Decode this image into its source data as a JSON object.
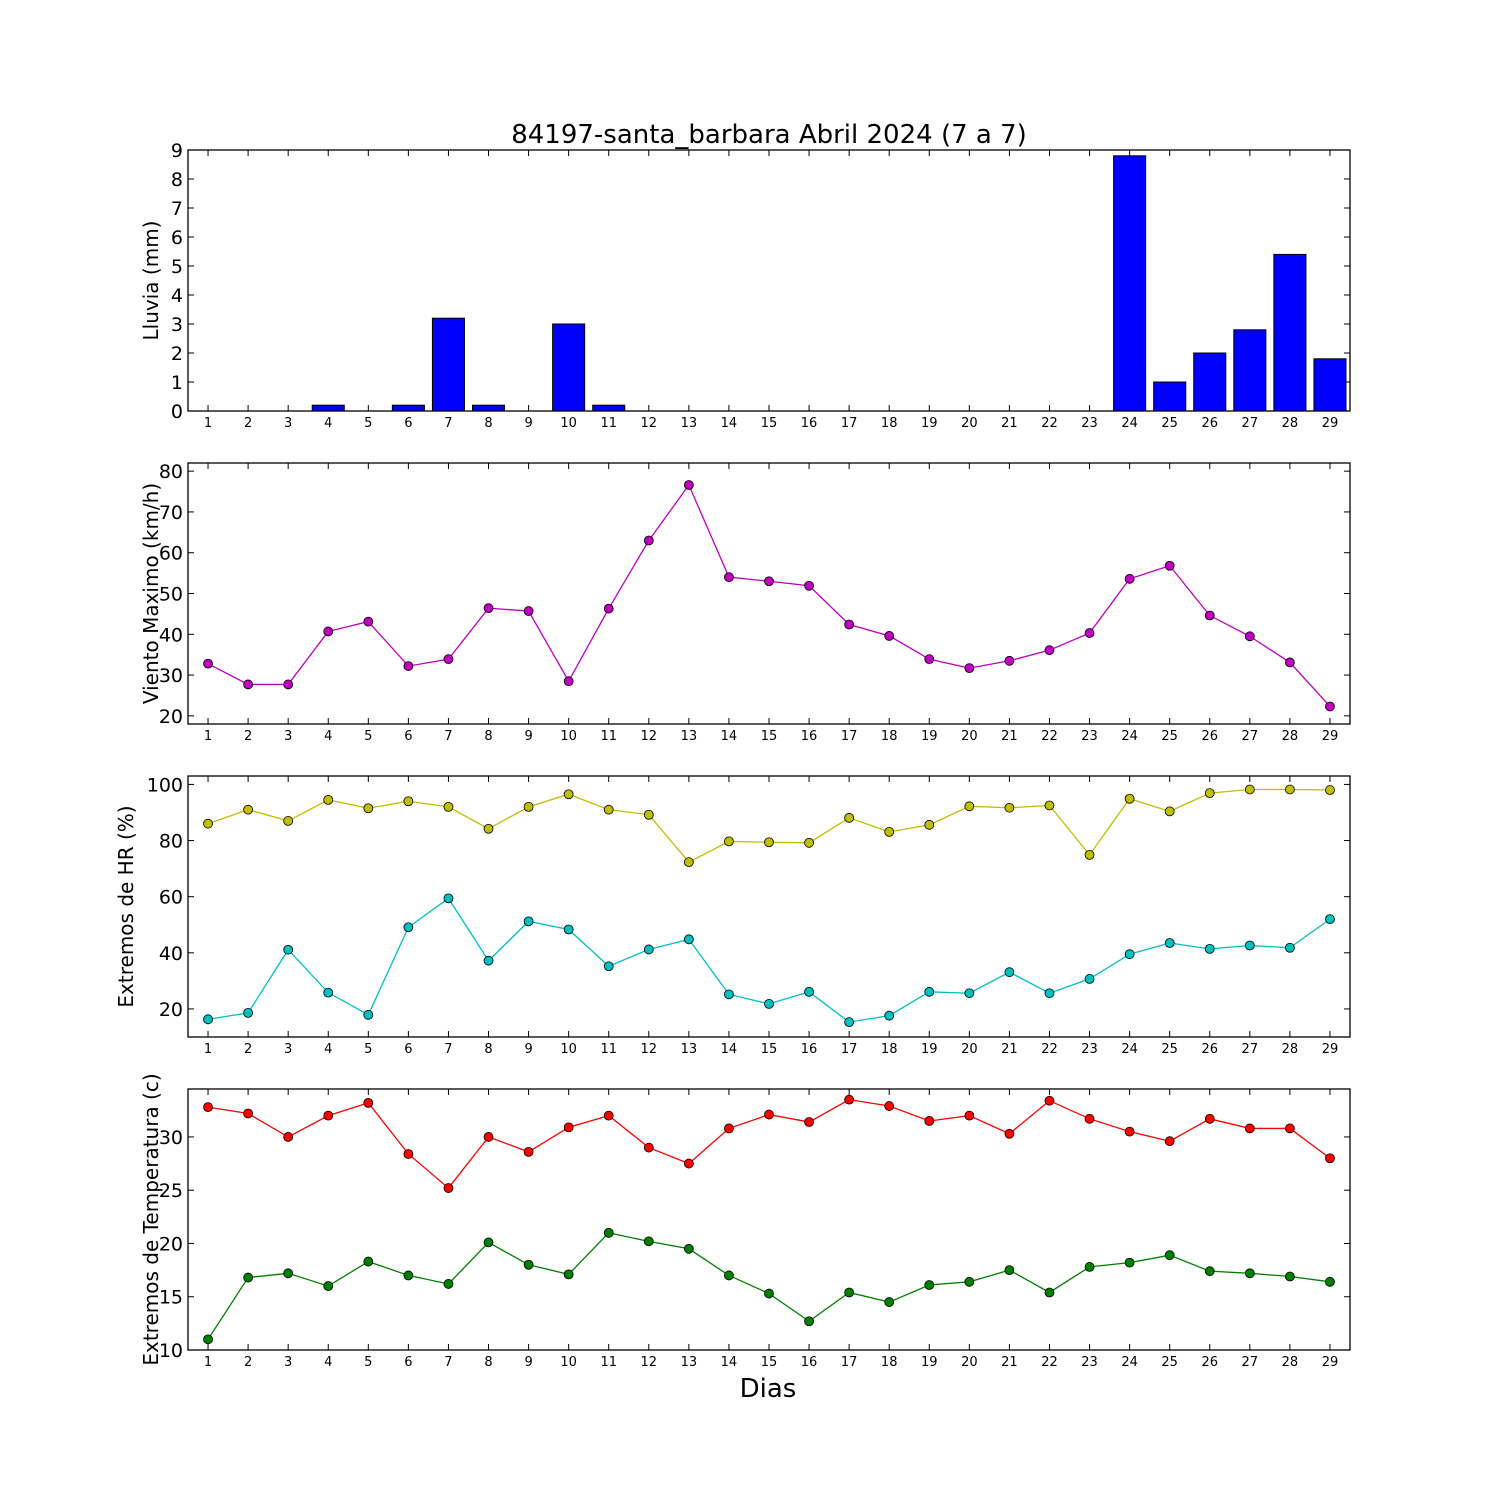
{
  "title": "84197-santa_barbara Abril 2024  (7 a 7)",
  "xlabel": "Dias",
  "chart_data": [
    {
      "type": "bar",
      "ylabel": "Lluvia (mm)",
      "ylim": [
        0,
        9
      ],
      "yticks": [
        0,
        1,
        2,
        3,
        4,
        5,
        6,
        7,
        8,
        9
      ],
      "x": [
        1,
        2,
        3,
        4,
        5,
        6,
        7,
        8,
        9,
        10,
        11,
        12,
        13,
        14,
        15,
        16,
        17,
        18,
        19,
        20,
        21,
        22,
        23,
        24,
        25,
        26,
        27,
        28,
        29
      ],
      "series": [
        {
          "color": "#0000ff",
          "values": [
            0,
            0,
            0,
            0.2,
            0,
            0.2,
            3.2,
            0.2,
            0,
            3.0,
            0.2,
            0,
            0,
            0,
            0,
            0,
            0,
            0,
            0,
            0,
            0,
            0,
            0,
            8.8,
            1.0,
            2.0,
            2.8,
            5.4,
            1.8
          ]
        }
      ]
    },
    {
      "type": "line",
      "ylabel": "Viento Maximo (km/h)",
      "ylim": [
        18,
        82
      ],
      "yticks": [
        20,
        30,
        40,
        50,
        60,
        70,
        80
      ],
      "x": [
        1,
        2,
        3,
        4,
        5,
        6,
        7,
        8,
        9,
        10,
        11,
        12,
        13,
        14,
        15,
        16,
        17,
        18,
        19,
        20,
        21,
        22,
        23,
        24,
        25,
        26,
        27,
        28,
        29
      ],
      "series": [
        {
          "color": "#bf00bf",
          "values": [
            32.8,
            27.7,
            27.7,
            40.7,
            43.1,
            32.2,
            33.9,
            46.4,
            45.7,
            28.5,
            46.3,
            63.0,
            76.6,
            54.0,
            53.0,
            51.9,
            42.4,
            39.6,
            33.9,
            31.7,
            33.5,
            36.1,
            40.3,
            53.6,
            56.8,
            44.6,
            39.5,
            33.1,
            22.3
          ]
        }
      ]
    },
    {
      "type": "line",
      "ylabel": "Extremos de HR (%)",
      "ylim": [
        10,
        103
      ],
      "yticks": [
        20,
        40,
        60,
        80,
        100
      ],
      "x": [
        1,
        2,
        3,
        4,
        5,
        6,
        7,
        8,
        9,
        10,
        11,
        12,
        13,
        14,
        15,
        16,
        17,
        18,
        19,
        20,
        21,
        22,
        23,
        24,
        25,
        26,
        27,
        28,
        29
      ],
      "series": [
        {
          "color": "#bfbf00",
          "values": [
            86,
            91,
            87,
            94.5,
            91.5,
            94,
            92,
            84.2,
            92,
            96.5,
            91,
            89.2,
            72.3,
            79.7,
            79.4,
            79.2,
            88.1,
            83.1,
            85.6,
            92.2,
            91.7,
            92.5,
            74.9,
            94.9,
            90.4,
            96.9,
            98.2,
            98.2,
            98
          ]
        },
        {
          "color": "#00bfbf",
          "values": [
            16.3,
            18.6,
            41.1,
            25.8,
            17.9,
            49.1,
            59.4,
            37.2,
            51.2,
            48.3,
            35.2,
            41.2,
            44.8,
            25.2,
            21.8,
            26.1,
            15.3,
            17.6,
            26.1,
            25.6,
            33.1,
            25.6,
            30.7,
            39.5,
            43.5,
            41.4,
            42.6,
            41.8,
            52
          ]
        }
      ]
    },
    {
      "type": "line",
      "ylabel": "Extremos de Temperatura (c)",
      "ylim": [
        10,
        34.5
      ],
      "yticks": [
        10,
        15,
        20,
        25,
        30
      ],
      "x": [
        1,
        2,
        3,
        4,
        5,
        6,
        7,
        8,
        9,
        10,
        11,
        12,
        13,
        14,
        15,
        16,
        17,
        18,
        19,
        20,
        21,
        22,
        23,
        24,
        25,
        26,
        27,
        28,
        29
      ],
      "series": [
        {
          "color": "#ff0000",
          "values": [
            32.8,
            32.2,
            30.0,
            32.0,
            33.2,
            28.4,
            25.2,
            30.0,
            28.6,
            30.9,
            32.0,
            29.0,
            27.5,
            30.8,
            32.1,
            31.4,
            33.5,
            32.9,
            31.5,
            32.0,
            30.3,
            33.4,
            31.7,
            30.5,
            29.6,
            31.7,
            30.8,
            30.8,
            28.0
          ]
        },
        {
          "color": "#007f00",
          "values": [
            11.0,
            16.8,
            17.2,
            16.0,
            18.3,
            17.0,
            16.2,
            20.1,
            18.0,
            17.1,
            21.0,
            20.2,
            19.5,
            17.0,
            15.3,
            12.7,
            15.4,
            14.5,
            16.1,
            16.4,
            17.5,
            15.4,
            17.8,
            18.2,
            18.9,
            17.4,
            17.2,
            16.9,
            16.4
          ]
        }
      ]
    }
  ]
}
